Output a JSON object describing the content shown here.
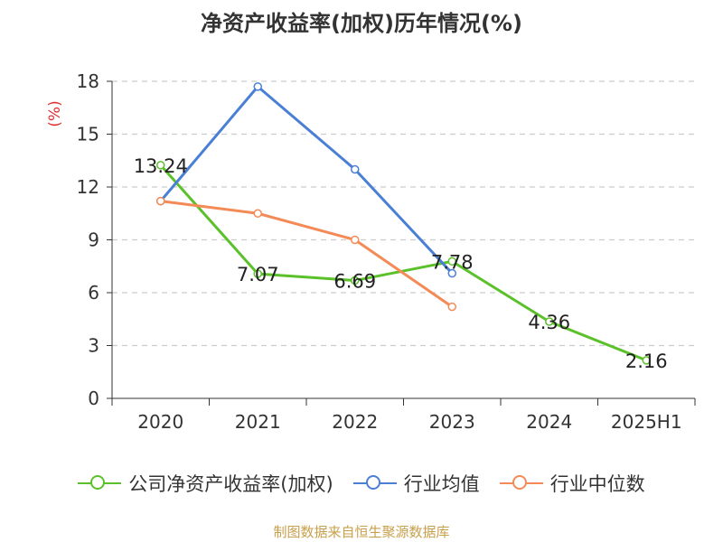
{
  "chart_data": {
    "type": "line",
    "title": "净资产收益率(加权)历年情况(%)",
    "ylabel": "(%)",
    "categories": [
      "2020",
      "2021",
      "2022",
      "2023",
      "2024",
      "2025H1"
    ],
    "ylim": [
      0,
      18
    ],
    "yticks": [
      0,
      3,
      6,
      9,
      12,
      15,
      18
    ],
    "grid": true,
    "legend_position": "bottom",
    "series": [
      {
        "name": "公司净资产收益率(加权)",
        "color": "#5bc12a",
        "values": [
          13.24,
          7.07,
          6.69,
          7.78,
          4.36,
          2.16
        ],
        "show_labels": true
      },
      {
        "name": "行业均值",
        "color": "#4a7fd6",
        "values": [
          11.2,
          17.7,
          13.0,
          7.1,
          null,
          null
        ],
        "show_labels": false
      },
      {
        "name": "行业中位数",
        "color": "#f48a56",
        "values": [
          11.2,
          10.5,
          9.0,
          5.2,
          null,
          null
        ],
        "show_labels": false
      }
    ]
  },
  "footer": {
    "source": "制图数据来自恒生聚源数据库"
  }
}
